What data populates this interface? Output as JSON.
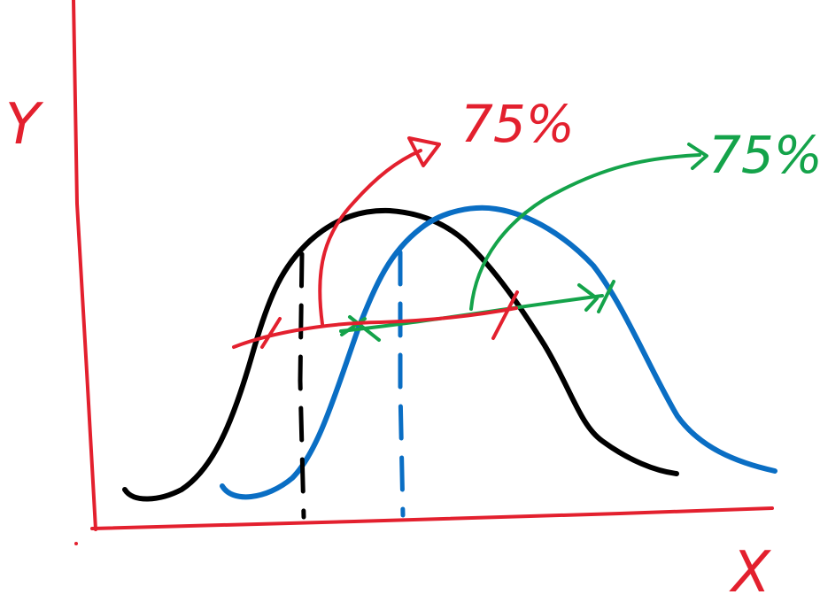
{
  "axes": {
    "x_label": "X",
    "y_label": "Y"
  },
  "annotations": {
    "red_percent": "75%",
    "green_percent": "75%"
  },
  "colors": {
    "axis": "#e3202e",
    "black_curve": "#000000",
    "blue_curve": "#0a6ec4",
    "red_annotation": "#e3202e",
    "green_annotation": "#14a34a"
  }
}
